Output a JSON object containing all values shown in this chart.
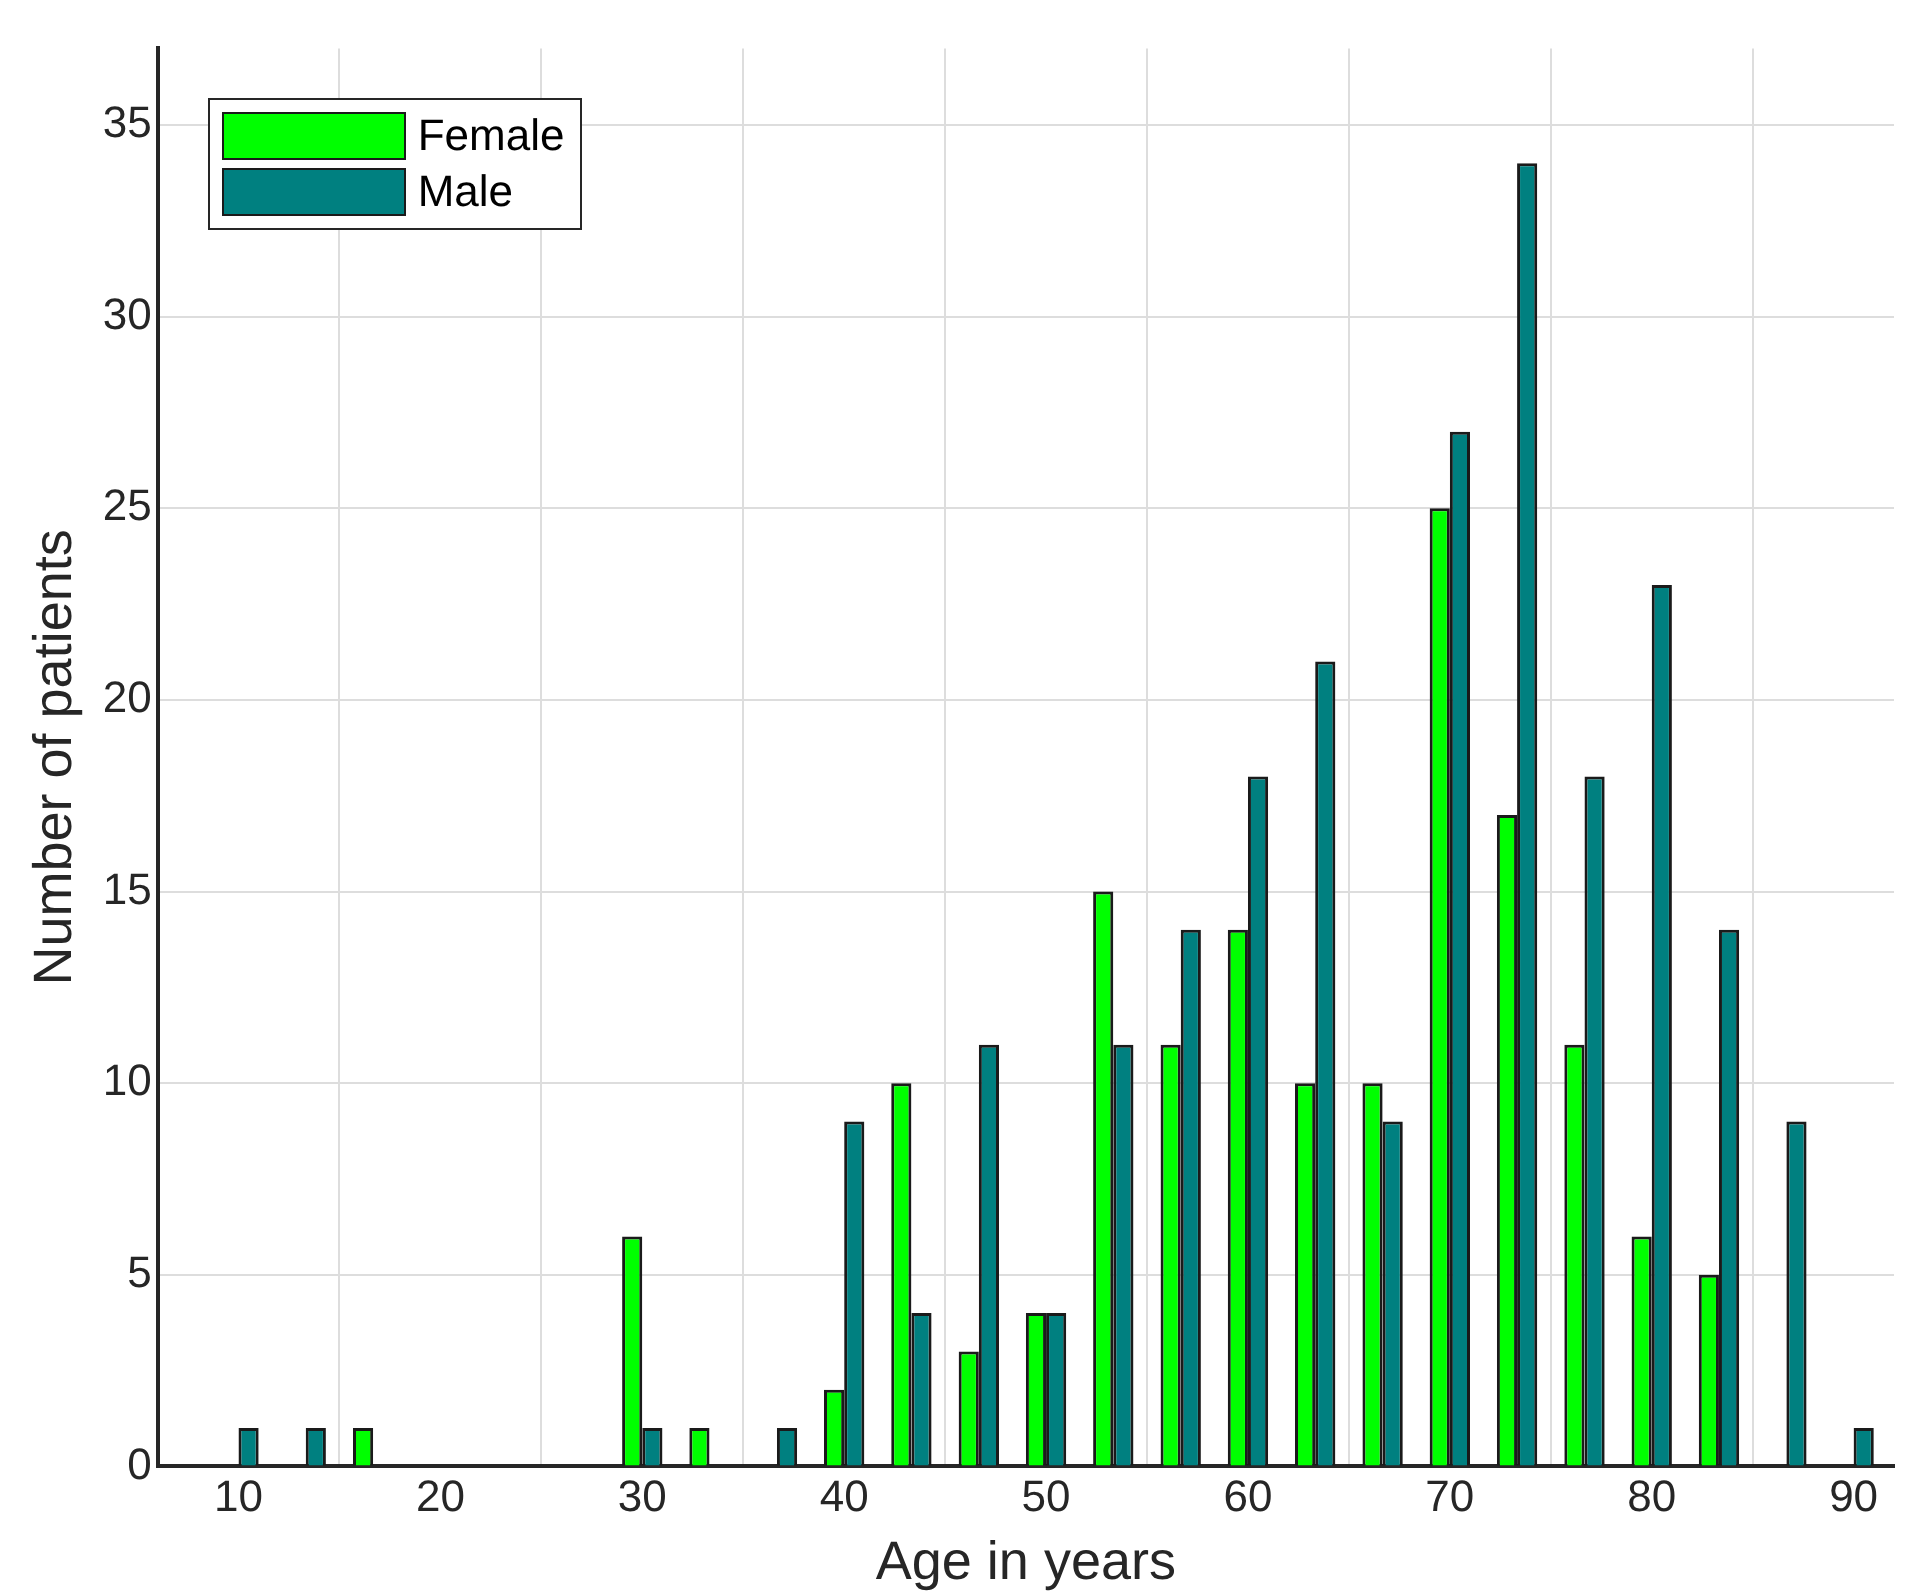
{
  "chart_data": {
    "type": "bar",
    "xlabel": "Age in years",
    "ylabel": "Number of patients",
    "x": [
      10,
      13.33,
      16.67,
      20,
      23.33,
      26.67,
      30,
      33.33,
      36.67,
      40,
      43.33,
      46.67,
      50,
      53.33,
      56.67,
      60,
      63.33,
      66.67,
      70,
      73.33,
      76.67,
      80,
      83.33,
      86.67,
      90
    ],
    "series": [
      {
        "name": "Female",
        "color": "#00ff00",
        "values": [
          0,
          0,
          1,
          0,
          0,
          0,
          6,
          1,
          0,
          2,
          10,
          3,
          4,
          15,
          11,
          14,
          10,
          10,
          25,
          17,
          11,
          6,
          5,
          0,
          0
        ]
      },
      {
        "name": "Male",
        "color": "#008080",
        "values": [
          1,
          1,
          0,
          0,
          0,
          0,
          1,
          0,
          1,
          9,
          4,
          11,
          4,
          11,
          14,
          18,
          21,
          9,
          27,
          34,
          18,
          23,
          14,
          9,
          1
        ]
      }
    ],
    "xlim": [
      6,
      92
    ],
    "xticks": [
      10,
      20,
      30,
      40,
      50,
      60,
      70,
      80,
      90
    ],
    "ylim": [
      0,
      37
    ],
    "yticks": [
      0,
      5,
      10,
      15,
      20,
      25,
      30,
      35
    ],
    "grid": true,
    "legend": "top left"
  }
}
